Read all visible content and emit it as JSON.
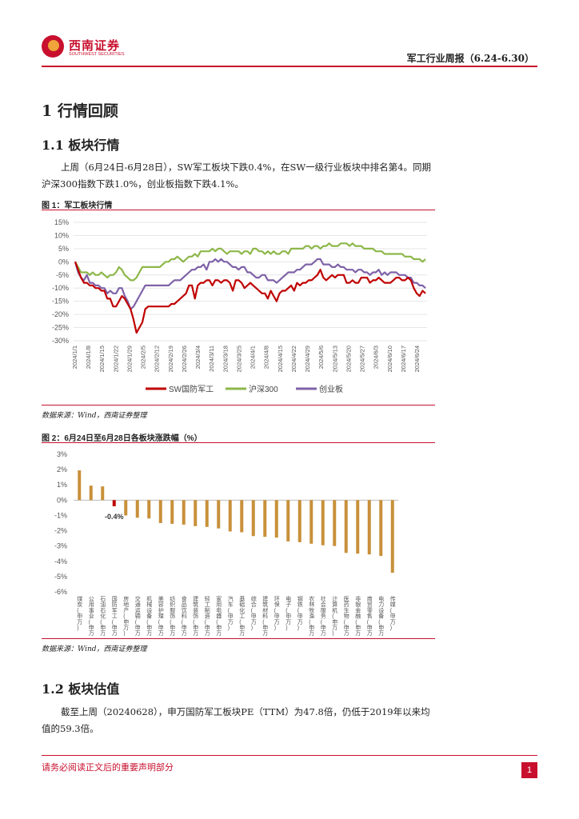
{
  "header": {
    "logo_name": "西南证券",
    "logo_en": "SOUTHWEST SECURITIES",
    "report_title": "军工行业周报（6.24-6.30）"
  },
  "section1": {
    "title": "1 行情回顾",
    "sub1_title": "1.1 板块行情",
    "para1": "上周（6月24日-6月28日），SW军工板块下跌0.4%，在SW一级行业板块中排名第4。同期沪深300指数下跌1.0%，创业板指数下跌4.1%。"
  },
  "figure1": {
    "caption": "图 1：军工板块行情",
    "source": "数据来源：Wind，西南证券整理"
  },
  "figure2": {
    "caption": "图 2：6月24日至6月28日各板块涨跌幅（%）",
    "source": "数据来源：Wind，西南证券整理"
  },
  "section2": {
    "title": "1.2 板块估值",
    "para": "截至上周（20240628），申万国防军工板块PE（TTM）为47.8倍，仍低于2019年以来均值的59.3倍。"
  },
  "footer": {
    "disclaimer": "请务必阅读正文后的重要声明部分",
    "page": "1"
  },
  "chart_data": [
    {
      "type": "line",
      "ylim": [
        -30,
        15
      ],
      "yticks": [
        "15%",
        "10%",
        "5%",
        "0%",
        "-5%",
        "-10%",
        "-15%",
        "-20%",
        "-25%",
        "-30%"
      ],
      "x_tick_labels": [
        "2024/1/1",
        "2024/1/8",
        "2024/1/15",
        "2024/1/22",
        "2024/1/29",
        "2024/2/5",
        "2024/2/12",
        "2024/2/19",
        "2024/2/26",
        "2024/3/4",
        "2024/3/11",
        "2024/3/18",
        "2024/3/25",
        "2024/4/1",
        "2024/4/8",
        "2024/4/15",
        "2024/4/22",
        "2024/4/29",
        "2024/5/6",
        "2024/5/13",
        "2024/5/20",
        "2024/5/27",
        "2024/6/3",
        "2024/6/10",
        "2024/6/17",
        "2024/6/24"
      ],
      "legend_position": "bottom",
      "series": [
        {
          "name": "SW国防军工",
          "color": "#c00000",
          "values": [
            0,
            -3,
            -6,
            -8,
            -8,
            -9,
            -9,
            -10,
            -10,
            -11,
            -11,
            -14,
            -14,
            -17,
            -17,
            -15,
            -13,
            -14,
            -16,
            -18,
            -22,
            -27,
            -25,
            -23,
            -18,
            -17,
            -17,
            -17,
            -17,
            -17,
            -17,
            -17,
            -17,
            -16,
            -16,
            -15,
            -14,
            -13,
            -12,
            -9,
            -9,
            -14,
            -9,
            -8,
            -8,
            -7,
            -7,
            -9,
            -7,
            -7,
            -8,
            -7,
            -7,
            -8,
            -11,
            -7,
            -7,
            -8,
            -10,
            -9,
            -8,
            -9,
            -10,
            -11,
            -12,
            -12,
            -14,
            -11,
            -13,
            -15,
            -12,
            -11,
            -11,
            -10,
            -9,
            -11,
            -8,
            -9,
            -8,
            -8,
            -7,
            -7,
            -6,
            -5,
            -3,
            -6,
            -7,
            -6,
            -5,
            -6,
            -5,
            -5,
            -5,
            -8,
            -8,
            -7,
            -8,
            -8,
            -6,
            -6,
            -6,
            -8,
            -7,
            -7,
            -6,
            -7,
            -8,
            -8,
            -8,
            -7,
            -6,
            -6,
            -7,
            -7,
            -6,
            -7,
            -10,
            -12,
            -13,
            -11,
            -12
          ]
        },
        {
          "name": "沪深300",
          "color": "#8db74a",
          "values": [
            0,
            -2,
            -4,
            -4,
            -4,
            -5,
            -4,
            -5,
            -5,
            -4,
            -5,
            -6,
            -5,
            -5,
            -4,
            -2,
            -3,
            -5,
            -6,
            -7,
            -7,
            -6,
            -4,
            -2,
            -2,
            -2,
            -2,
            -2,
            -2,
            -2,
            -1,
            0,
            0,
            1,
            1,
            2,
            1,
            0,
            1,
            2,
            2,
            3,
            2,
            4,
            4,
            4,
            4,
            5,
            4,
            5,
            5,
            4,
            3,
            4,
            4,
            4,
            4,
            3,
            4,
            4,
            3,
            5,
            5,
            4,
            4,
            3,
            4,
            3,
            4,
            3,
            3,
            4,
            4,
            3,
            5,
            5,
            5,
            5,
            5,
            6,
            6,
            5,
            6,
            6,
            5,
            6,
            6,
            7,
            6,
            6,
            6,
            7,
            7,
            7,
            6,
            7,
            6,
            6,
            6,
            5,
            5,
            5,
            5,
            4,
            4,
            4,
            3,
            3,
            3,
            3,
            3,
            3,
            3,
            2,
            2,
            2,
            1,
            1,
            1,
            0,
            1
          ]
        },
        {
          "name": "创业板",
          "color": "#7f62a8",
          "values": [
            0,
            -4,
            -6,
            -7,
            -5,
            -8,
            -8,
            -9,
            -9,
            -10,
            -10,
            -12,
            -11,
            -12,
            -12,
            -10,
            -10,
            -13,
            -15,
            -18,
            -17,
            -15,
            -13,
            -11,
            -9,
            -9,
            -9,
            -9,
            -9,
            -9,
            -9,
            -9,
            -9,
            -8,
            -7,
            -7,
            -7,
            -6,
            -5,
            -4,
            -3,
            -3,
            -2,
            -2,
            -1,
            -3,
            0,
            0,
            1,
            0,
            1,
            0,
            0,
            -1,
            -2,
            -2,
            -3,
            -2,
            -2,
            -4,
            -4,
            -5,
            -6,
            -6,
            -5,
            -5,
            -7,
            -7,
            -7,
            -8,
            -7,
            -6,
            -5,
            -4,
            -4,
            -4,
            -3,
            -3,
            -2,
            -1,
            -1,
            -1,
            0,
            1,
            1,
            -1,
            -1,
            -1,
            -2,
            -2,
            -1,
            -2,
            -2,
            -3,
            -3,
            -3,
            -4,
            -3,
            -3,
            -4,
            -4,
            -5,
            -4,
            -4,
            -3,
            -5,
            -4,
            -5,
            -4,
            -4,
            -4,
            -5,
            -5,
            -5,
            -6,
            -6,
            -8,
            -8,
            -9,
            -9,
            -10
          ]
        }
      ]
    },
    {
      "type": "bar",
      "ylim": [
        -6,
        3
      ],
      "yticks": [
        "3%",
        "2%",
        "1%",
        "0%",
        "-1%",
        "-2%",
        "-3%",
        "-4%",
        "-5%",
        "-6%"
      ],
      "categories": [
        "煤炭(申万)",
        "公用事业(申万)",
        "石油石化(申万)",
        "国防军工(申万)",
        "房地产(申万)",
        "交通运输(申万)",
        "机械设备(申万)",
        "美容护理(申万)",
        "纺织服饰(申万)",
        "食品饮料(申万)",
        "建筑装饰(申万)",
        "轻工制造(申万)",
        "家用电器(申万)",
        "汽车(申万)",
        "基础化工(申万)",
        "综合(申万)",
        "建筑材料(申万)",
        "环保(申万)",
        "电子(申万)",
        "钢铁(申万)",
        "农林牧渔(申万)",
        "社会服务(申万)",
        "计算机(申万)",
        "医药生物(申万)",
        "非银金融(申万)",
        "商贸零售(申万)",
        "电力设备(申万)",
        "传媒(申万)"
      ],
      "values": [
        1.95,
        0.95,
        0.9,
        -0.4,
        -1.0,
        -1.15,
        -1.2,
        -1.5,
        -1.55,
        -1.6,
        -1.7,
        -1.75,
        -1.85,
        -2.05,
        -2.1,
        -2.35,
        -2.4,
        -2.45,
        -2.7,
        -2.75,
        -2.85,
        -2.95,
        -3.0,
        -3.45,
        -3.5,
        -3.55,
        -3.65,
        -4.75
      ],
      "data_label": "-0.4%",
      "highlight_index": 3,
      "bar_color": "#c8903a",
      "highlight_color": "#c00000"
    }
  ]
}
